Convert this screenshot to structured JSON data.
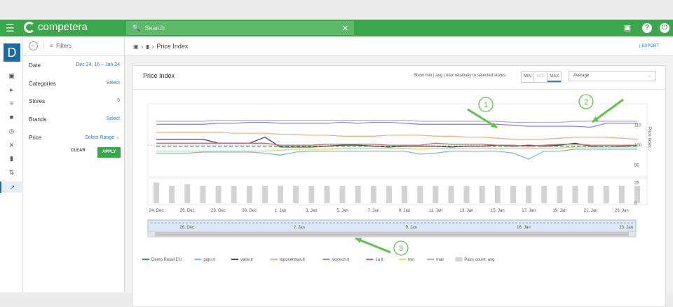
{
  "topbar": {
    "brand": "competera",
    "search_placeholder": "Search",
    "icons": [
      "menu-icon",
      "search-icon",
      "close-icon",
      "message-icon",
      "help-icon",
      "power-icon"
    ]
  },
  "rail": {
    "badge": "D"
  },
  "filters": {
    "header": "Filters",
    "rows": [
      {
        "label": "Date",
        "value": "Dec 24, 16 – Jan 24"
      },
      {
        "label": "Categories",
        "value": "Select"
      },
      {
        "label": "Stores",
        "value": "5"
      },
      {
        "label": "Brands",
        "value": "Select"
      },
      {
        "label": "Price",
        "value": "Select Range"
      }
    ],
    "clear": "CLEAR",
    "apply": "APPLY"
  },
  "breadcrumb": {
    "current": "Price Index",
    "export": "EXPORT"
  },
  "card": {
    "title": "Price Index",
    "relative_text": "Show min | avg | max relatively to selected stores",
    "segments": [
      "MIN",
      "AVG",
      "MAX"
    ],
    "select_value": "Average"
  },
  "chart_data": {
    "type": "line",
    "x": [
      "24. Dec",
      "25. Dec",
      "26. Dec",
      "27. Dec",
      "28. Dec",
      "29. Dec",
      "30. Dec",
      "31. Dec",
      "1. Jan",
      "2. Jan",
      "3. Jan",
      "4. Jan",
      "5. Jan",
      "6. Jan",
      "7. Jan",
      "8. Jan",
      "9. Jan",
      "10. Jan",
      "11. Jan",
      "12. Jan",
      "13. Jan",
      "14. Jan",
      "15. Jan",
      "16. Jan",
      "17. Jan",
      "18. Jan",
      "19. Jan",
      "20. Jan",
      "21. Jan",
      "22. Jan",
      "23. Jan",
      "24. Jan"
    ],
    "x_tick_labels": [
      "24. Dec",
      "26. Dec",
      "28. Dec",
      "30. Dec",
      "1. Jan",
      "3. Jan",
      "5. Jan",
      "7. Jan",
      "9. Jan",
      "11. Jan",
      "13. Jan",
      "15. Jan",
      "17. Jan",
      "19. Jan",
      "21. Jan",
      "23. Jan"
    ],
    "ylabel": "Price Index",
    "y_ticks": [
      90,
      100,
      110
    ],
    "ylim": [
      87,
      118
    ],
    "series": [
      {
        "name": "Demo Retail EU",
        "color": "#2e9e5b",
        "values": [
          99.5,
          99.5,
          99.5,
          99.5,
          99.5,
          99.5,
          99.5,
          99.5,
          99.5,
          99.5,
          99.5,
          99.5,
          99.5,
          99.5,
          99.5,
          99.5,
          99.5,
          99.5,
          99.5,
          99.5,
          99.5,
          99.5,
          99.5,
          99.5,
          99.5,
          99.5,
          99.5,
          99.5,
          99.5,
          99.5,
          99.5,
          99.5
        ]
      },
      {
        "name": "pigu.lt",
        "color": "#7ab8e6",
        "values": [
          96,
          96,
          96,
          96.5,
          96.5,
          96.5,
          96.5,
          96,
          95,
          96.5,
          97,
          97,
          97,
          97,
          97,
          97,
          97,
          95.5,
          96,
          97,
          97,
          97,
          97,
          96,
          93,
          97,
          97,
          98,
          98,
          98,
          98,
          98
        ]
      },
      {
        "name": "varle.lt",
        "color": "#444444",
        "values": [
          103,
          103,
          103,
          103,
          101,
          101,
          101,
          104,
          99,
          99,
          99,
          99.5,
          100,
          100,
          99.5,
          99,
          99.5,
          99.5,
          99.5,
          99,
          99.5,
          99.5,
          100,
          99.5,
          100,
          99.5,
          100,
          101,
          99.5,
          99,
          99.5,
          100
        ]
      },
      {
        "name": "topocentras.lt",
        "color": "#f4b183",
        "values": [
          106.5,
          106.5,
          106.5,
          106.5,
          106.5,
          106,
          106,
          106,
          105.5,
          105.5,
          105,
          105,
          104.5,
          104.5,
          104.5,
          105,
          105,
          105,
          104.5,
          104.5,
          104,
          104,
          103.5,
          103,
          103,
          103,
          103.5,
          104,
          104,
          104,
          103.5,
          103
        ]
      },
      {
        "name": "skytech.lt",
        "color": "#8c86e0",
        "values": [
          110.5,
          110.5,
          110.5,
          110.5,
          111,
          111,
          111.5,
          111.5,
          111,
          111,
          111,
          111,
          111.5,
          111,
          111.5,
          111.5,
          111,
          110.5,
          110.5,
          110.5,
          110.5,
          110.5,
          110.5,
          110,
          109.5,
          109.5,
          109.5,
          109.5,
          109,
          111,
          111,
          111
        ]
      },
      {
        "name": "1a.lt",
        "color": "#e85d75",
        "values": [
          101,
          101,
          101,
          101,
          101,
          101,
          101,
          101,
          100,
          100,
          100,
          100.5,
          100.5,
          100.5,
          100.5,
          100,
          100,
          100,
          101,
          100.5,
          100.5,
          100.5,
          100,
          100,
          99.5,
          100,
          100.5,
          100.5,
          100,
          100,
          100,
          100
        ]
      },
      {
        "name": "min",
        "color": "#e6d85a",
        "values": [
          97,
          97,
          97,
          97,
          97,
          97,
          97,
          97,
          97.5,
          98,
          98,
          98,
          98.5,
          98.5,
          98.5,
          98.5,
          98.5,
          98,
          98.5,
          98.5,
          98.5,
          98.5,
          98.5,
          98.5,
          98.5,
          98.5,
          98.5,
          99,
          99,
          99,
          99,
          99
        ]
      },
      {
        "name": "max",
        "color": "#b0a8f0",
        "values": [
          112,
          112,
          112,
          112,
          112.5,
          112.5,
          112.5,
          112.5,
          112.5,
          112.5,
          112.5,
          112.5,
          112.5,
          112.5,
          112.5,
          112.5,
          112.5,
          112,
          112,
          112,
          112,
          112,
          112,
          111.5,
          111.5,
          111.5,
          111.5,
          112,
          112,
          112,
          112,
          112
        ]
      },
      {
        "name": "Pairs count: avg",
        "color": "#d3d3d3",
        "type": "bar",
        "values": [
          25,
          21,
          23,
          21,
          21,
          21,
          21,
          21,
          21,
          21,
          21,
          21,
          21,
          21,
          21,
          21,
          21,
          21,
          21,
          21,
          21,
          21,
          21,
          21,
          21,
          21,
          21,
          21,
          21,
          21,
          21,
          21
        ]
      }
    ],
    "bar_y_ticks": [
      0,
      25
    ],
    "navigator_labels": [
      "26. Dec",
      "2. Jan",
      "9. Jan",
      "16. Jan",
      "23. Jan"
    ],
    "annotations": [
      "1",
      "2",
      "3"
    ],
    "annotation_color": "#5fc34a"
  }
}
